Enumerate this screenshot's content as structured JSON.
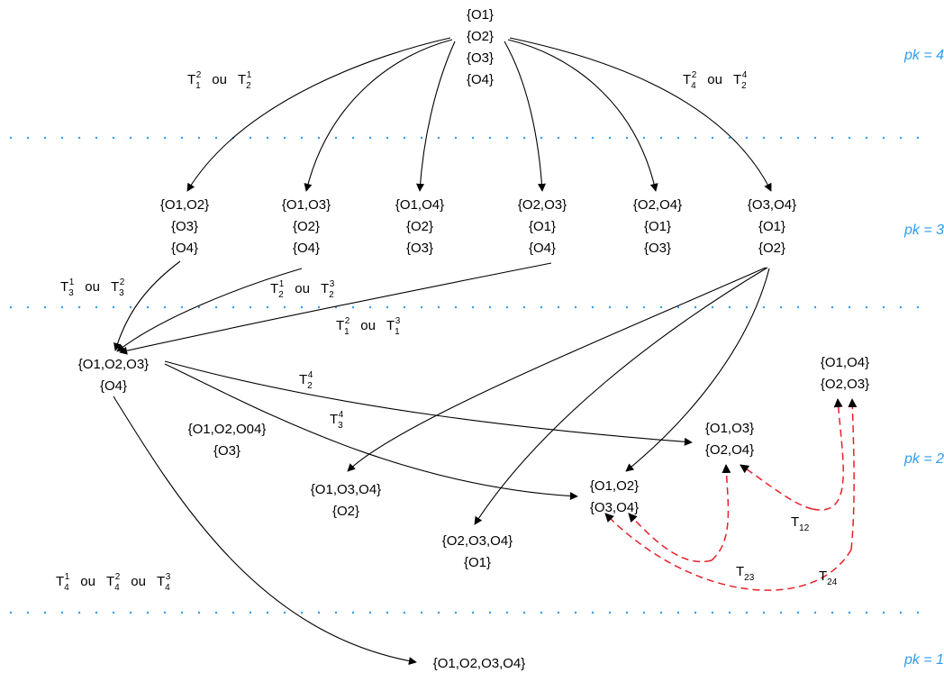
{
  "levels": [
    {
      "id": "pk4",
      "label": "pk = 4"
    },
    {
      "id": "pk3",
      "label": "pk = 3"
    },
    {
      "id": "pk2",
      "label": "pk = 2"
    },
    {
      "id": "pk1",
      "label": "pk = 1"
    }
  ],
  "nodes": {
    "root": [
      "{O1}",
      "{O2}",
      "{O3}",
      "{O4}"
    ],
    "n12_3_4": [
      "{O1,O2}",
      "{O3}",
      "{O4}"
    ],
    "n13_2_4": [
      "{O1,O3}",
      "{O2}",
      "{O4}"
    ],
    "n14_2_3": [
      "{O1,O4}",
      "{O2}",
      "{O3}"
    ],
    "n23_1_4": [
      "{O2,O3}",
      "{O1}",
      "{O4}"
    ],
    "n24_1_3": [
      "{O2,O4}",
      "{O1}",
      "{O3}"
    ],
    "n34_1_2": [
      "{O3,O4}",
      "{O1}",
      "{O2}"
    ],
    "n123_4": [
      "{O1,O2,O3}",
      "{O4}"
    ],
    "n124_3": [
      "{O1,O2,O04}",
      "{O3}"
    ],
    "n134_2": [
      "{O1,O3,O4}",
      "{O2}"
    ],
    "n234_1": [
      "{O2,O3,O4}",
      "{O1}"
    ],
    "n12_34": [
      "{O1,O2}",
      "{O3,O4}"
    ],
    "n13_24": [
      "{O1,O3}",
      "{O2,O4}"
    ],
    "n14_23": [
      "{O1,O4}",
      "{O2,O3}"
    ],
    "n1234": [
      "{O1,O2,O3,O4}"
    ]
  },
  "labels": {
    "T": "T",
    "ou": "ou",
    "t12": "12",
    "t23": "23",
    "t24": "24",
    "i1": "1",
    "i2": "2",
    "i3": "3",
    "i4": "4"
  }
}
